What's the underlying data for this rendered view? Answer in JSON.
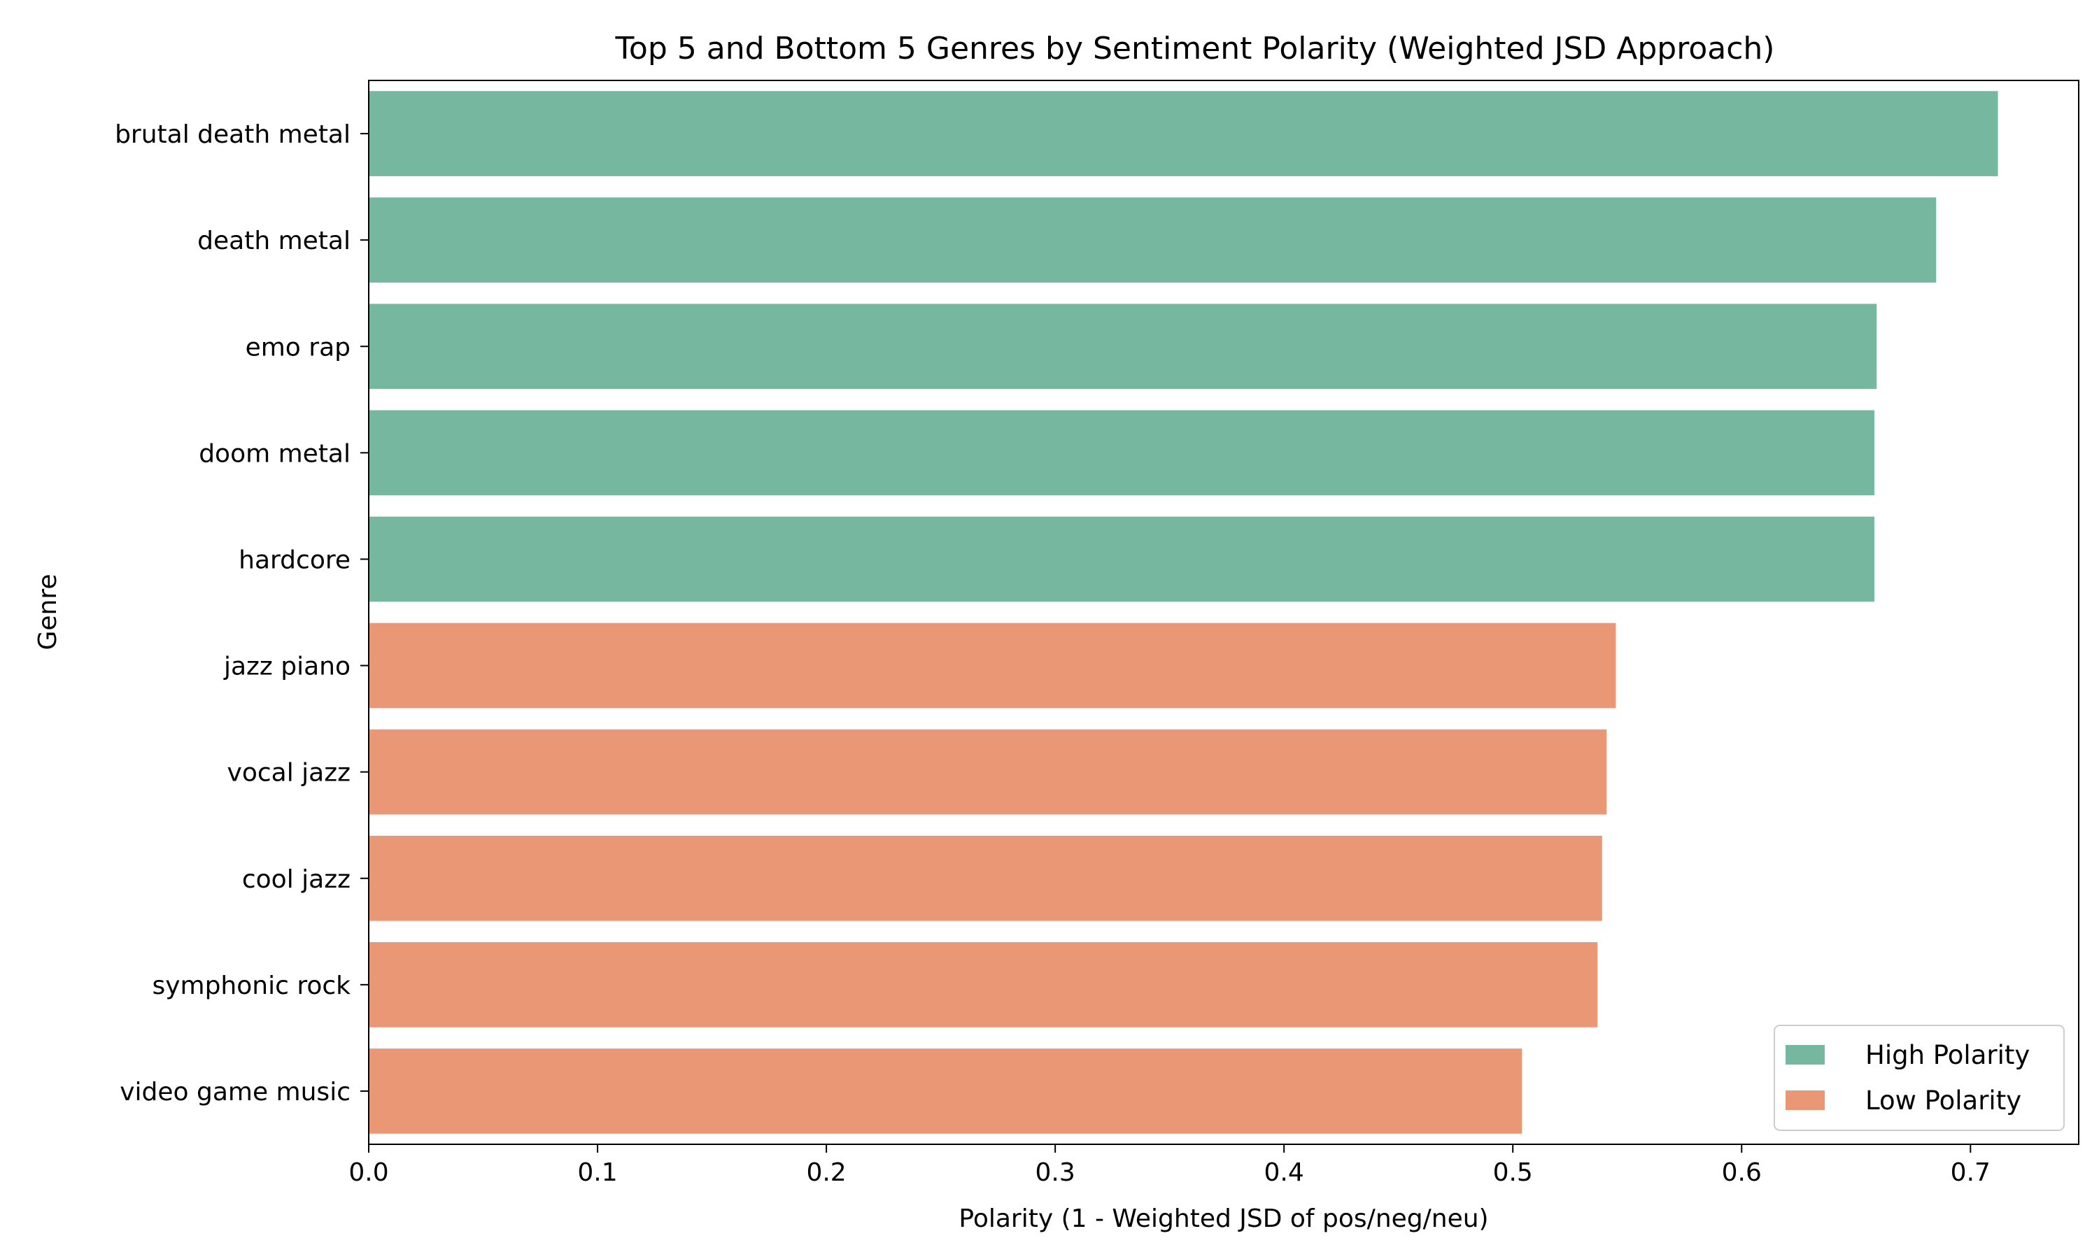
{
  "chart_data": {
    "type": "bar",
    "orientation": "horizontal",
    "title": "Top 5 and Bottom 5 Genres by Sentiment Polarity (Weighted JSD Approach)",
    "xlabel": "Polarity (1 - Weighted JSD of pos/neg/neu)",
    "ylabel": "Genre",
    "xlim": [
      0,
      0.7473
    ],
    "xticks": [
      "0.0",
      "0.1",
      "0.2",
      "0.3",
      "0.4",
      "0.5",
      "0.6",
      "0.7"
    ],
    "grid": false,
    "legend_position": "bottom-right",
    "categories": [
      "brutal death metal",
      "death metal",
      "emo rap",
      "doom metal",
      "hardcore",
      "jazz piano",
      "vocal jazz",
      "cool jazz",
      "symphonic rock",
      "video game music"
    ],
    "values": [
      0.712,
      0.685,
      0.659,
      0.658,
      0.658,
      0.545,
      0.541,
      0.539,
      0.537,
      0.504
    ],
    "groups": [
      "High Polarity",
      "High Polarity",
      "High Polarity",
      "High Polarity",
      "High Polarity",
      "Low Polarity",
      "Low Polarity",
      "Low Polarity",
      "Low Polarity",
      "Low Polarity"
    ],
    "series": [
      {
        "name": "High Polarity",
        "color": "#76b7a0"
      },
      {
        "name": "Low Polarity",
        "color": "#ea9775"
      }
    ]
  }
}
